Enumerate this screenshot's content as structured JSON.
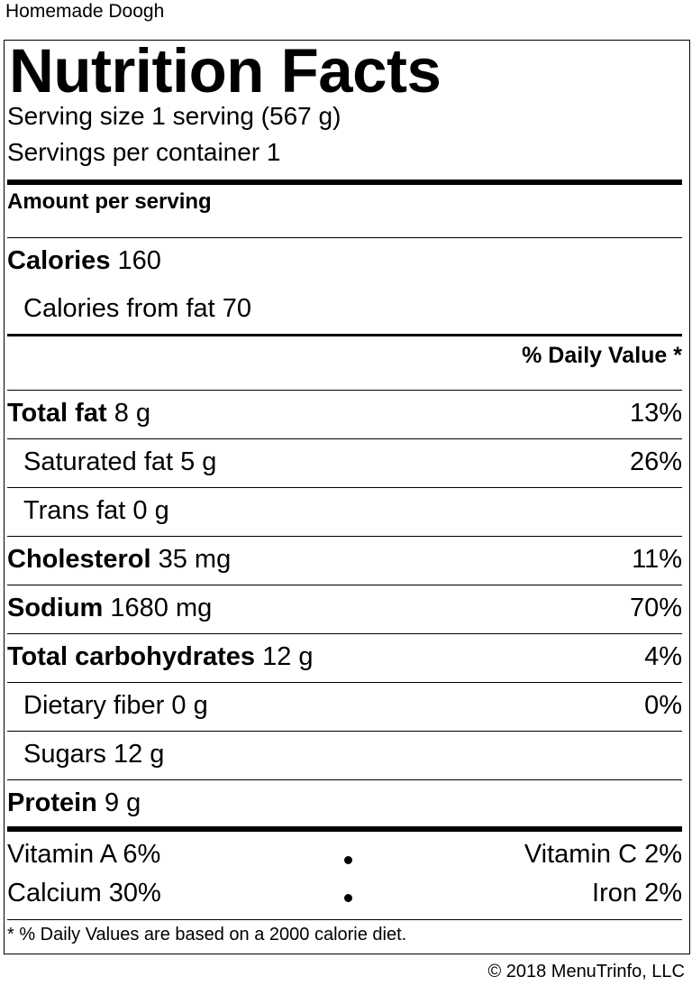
{
  "recipe_name": "Homemade Doogh",
  "title": "Nutrition Facts",
  "serving_size": "Serving size 1 serving (567 g)",
  "servings_per_container": "Servings per container 1",
  "amount_per_serving": "Amount per serving",
  "calories": {
    "label": "Calories",
    "value": "160"
  },
  "calories_from_fat": "Calories from fat 70",
  "daily_value_header": "% Daily Value *",
  "nutrients": [
    {
      "label": "Total fat",
      "amount": "8 g",
      "dv": "13%"
    },
    {
      "label": "Saturated fat",
      "amount": "5 g",
      "dv": "26%"
    },
    {
      "label": "Trans fat",
      "amount": "0 g",
      "dv": ""
    },
    {
      "label": "Cholesterol",
      "amount": "35 mg",
      "dv": "11%"
    },
    {
      "label": "Sodium",
      "amount": "1680 mg",
      "dv": "70%"
    },
    {
      "label": "Total carbohydrates",
      "amount": "12 g",
      "dv": "4%"
    },
    {
      "label": "Dietary fiber",
      "amount": "0 g",
      "dv": "0%"
    },
    {
      "label": "Sugars",
      "amount": "12 g",
      "dv": ""
    },
    {
      "label": "Protein",
      "amount": "9 g",
      "dv": ""
    }
  ],
  "vitamins": {
    "vitamin_a": "Vitamin A 6%",
    "vitamin_c": "Vitamin C 2%",
    "calcium": "Calcium 30%",
    "iron": "Iron 2%"
  },
  "footnote": "* % Daily Values are based on a 2000 calorie diet.",
  "copyright": "© 2018 MenuTrinfo, LLC"
}
